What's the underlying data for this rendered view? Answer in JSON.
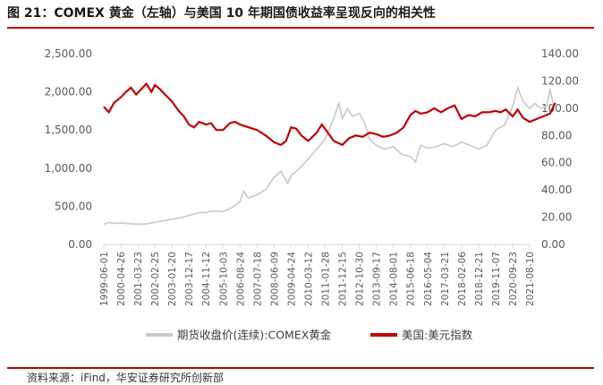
{
  "page": {
    "title": "图 21：COMEX 黄金（左轴）与美国 10 年期国债收益率呈现反向的相关性",
    "source": "资料来源：iFind，华安证券研究所创新部"
  },
  "colors": {
    "gold": "#c8c8c8",
    "usd": "#c00000",
    "rule": "#c00000",
    "axis": "#d9d9d9"
  },
  "chart_data": {
    "type": "line",
    "x_ticks": [
      "1999-06-01",
      "2000-04-26",
      "2001-03-23",
      "2002-02-25",
      "2003-01-20",
      "2003-12-17",
      "2004-11-12",
      "2005-10-03",
      "2006-08-24",
      "2007-07-18",
      "2008-06-09",
      "2009-04-24",
      "2010-03-12",
      "2011-01-28",
      "2011-12-15",
      "2012-10-30",
      "2013-09-17",
      "2014-08-01",
      "2015-06-18",
      "2016-05-04",
      "2017-03-21",
      "2018-02-06",
      "2018-12-21",
      "2019-11-07",
      "2020-09-23",
      "2021-08-10"
    ],
    "y_left": {
      "ticks": [
        "0.00",
        "500.00",
        "1,000.00",
        "1,500.00",
        "2,000.00",
        "2,500.00"
      ],
      "range": [
        0,
        2500
      ]
    },
    "y_right": {
      "ticks": [
        "0.00",
        "20.00",
        "40.00",
        "60.00",
        "80.00",
        "100.00",
        "120.00",
        "140.00"
      ],
      "range": [
        0,
        140
      ]
    },
    "series": [
      {
        "name": "期货收盘价(连续):COMEX黄金",
        "axis": "left",
        "color": "#c8c8c8",
        "points": [
          [
            0,
            265
          ],
          [
            0.3,
            290
          ],
          [
            0.6,
            275
          ],
          [
            1,
            280
          ],
          [
            1.5,
            272
          ],
          [
            2,
            265
          ],
          [
            2.5,
            270
          ],
          [
            3,
            290
          ],
          [
            3.5,
            310
          ],
          [
            4,
            330
          ],
          [
            4.5,
            350
          ],
          [
            5,
            380
          ],
          [
            5.5,
            410
          ],
          [
            6,
            420
          ],
          [
            6.5,
            440
          ],
          [
            7,
            430
          ],
          [
            7.5,
            480
          ],
          [
            8,
            560
          ],
          [
            8.2,
            700
          ],
          [
            8.5,
            610
          ],
          [
            9,
            650
          ],
          [
            9.5,
            720
          ],
          [
            10,
            880
          ],
          [
            10.4,
            960
          ],
          [
            10.8,
            800
          ],
          [
            11,
            900
          ],
          [
            11.5,
            1000
          ],
          [
            12,
            1120
          ],
          [
            12.5,
            1250
          ],
          [
            13,
            1380
          ],
          [
            13.5,
            1650
          ],
          [
            13.8,
            1850
          ],
          [
            14,
            1650
          ],
          [
            14.3,
            1780
          ],
          [
            14.6,
            1680
          ],
          [
            15,
            1720
          ],
          [
            15.3,
            1600
          ],
          [
            15.6,
            1380
          ],
          [
            16,
            1300
          ],
          [
            16.5,
            1250
          ],
          [
            17,
            1280
          ],
          [
            17.5,
            1180
          ],
          [
            18,
            1150
          ],
          [
            18.3,
            1080
          ],
          [
            18.6,
            1300
          ],
          [
            19,
            1260
          ],
          [
            19.5,
            1280
          ],
          [
            20,
            1320
          ],
          [
            20.5,
            1280
          ],
          [
            21,
            1340
          ],
          [
            21.5,
            1300
          ],
          [
            22,
            1250
          ],
          [
            22.5,
            1300
          ],
          [
            23,
            1500
          ],
          [
            23.5,
            1560
          ],
          [
            24,
            1800
          ],
          [
            24.3,
            2050
          ],
          [
            24.6,
            1880
          ],
          [
            25,
            1780
          ],
          [
            25.3,
            1850
          ],
          [
            25.6,
            1790
          ],
          [
            26,
            1800
          ],
          [
            26.2,
            2040
          ],
          [
            26.4,
            1800
          ]
        ]
      },
      {
        "name": "美国:美元指数",
        "axis": "right",
        "color": "#c00000",
        "points": [
          [
            0,
            101
          ],
          [
            0.3,
            97
          ],
          [
            0.6,
            104
          ],
          [
            1,
            108
          ],
          [
            1.3,
            112
          ],
          [
            1.6,
            115
          ],
          [
            1.9,
            110
          ],
          [
            2.2,
            114
          ],
          [
            2.5,
            118
          ],
          [
            2.8,
            112
          ],
          [
            3,
            117
          ],
          [
            3.3,
            114
          ],
          [
            3.6,
            110
          ],
          [
            4,
            105
          ],
          [
            4.4,
            98
          ],
          [
            4.7,
            94
          ],
          [
            5,
            88
          ],
          [
            5.3,
            86
          ],
          [
            5.6,
            90
          ],
          [
            6,
            88
          ],
          [
            6.3,
            89
          ],
          [
            6.6,
            84
          ],
          [
            7,
            84
          ],
          [
            7.4,
            89
          ],
          [
            7.7,
            90
          ],
          [
            8,
            88
          ],
          [
            8.5,
            86
          ],
          [
            9,
            84
          ],
          [
            9.5,
            80
          ],
          [
            10,
            75
          ],
          [
            10.4,
            73
          ],
          [
            10.7,
            76
          ],
          [
            11,
            86
          ],
          [
            11.3,
            85
          ],
          [
            11.6,
            80
          ],
          [
            12,
            76
          ],
          [
            12.5,
            82
          ],
          [
            12.8,
            88
          ],
          [
            13.1,
            83
          ],
          [
            13.5,
            76
          ],
          [
            14,
            73
          ],
          [
            14.4,
            78
          ],
          [
            14.8,
            80
          ],
          [
            15.2,
            79
          ],
          [
            15.6,
            82
          ],
          [
            16,
            81
          ],
          [
            16.4,
            79
          ],
          [
            16.8,
            80
          ],
          [
            17.2,
            82
          ],
          [
            17.6,
            86
          ],
          [
            18,
            95
          ],
          [
            18.3,
            98
          ],
          [
            18.6,
            96
          ],
          [
            19,
            97
          ],
          [
            19.4,
            100
          ],
          [
            19.8,
            97
          ],
          [
            20.2,
            100
          ],
          [
            20.6,
            102
          ],
          [
            21,
            92
          ],
          [
            21.4,
            95
          ],
          [
            21.8,
            94
          ],
          [
            22.2,
            97
          ],
          [
            22.6,
            97
          ],
          [
            23,
            98
          ],
          [
            23.3,
            97
          ],
          [
            23.6,
            99
          ],
          [
            24,
            94
          ],
          [
            24.3,
            99
          ],
          [
            24.6,
            93
          ],
          [
            25,
            90
          ],
          [
            25.4,
            92
          ],
          [
            25.8,
            94
          ],
          [
            26.2,
            96
          ],
          [
            26.5,
            104
          ]
        ]
      }
    ]
  }
}
